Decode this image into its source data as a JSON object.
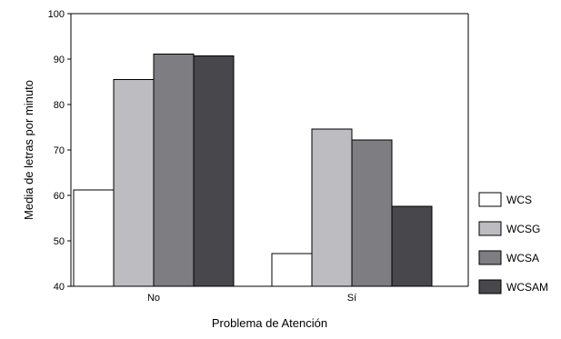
{
  "chart_data": {
    "type": "bar",
    "title": "",
    "xlabel": "Problema de Atención",
    "ylabel": "Media de letras por minuto",
    "ylim": [
      40,
      100
    ],
    "yticks": [
      40,
      50,
      60,
      70,
      80,
      90,
      100
    ],
    "grid": false,
    "legend_position": "right",
    "categories": [
      "No",
      "Sí"
    ],
    "series": [
      {
        "name": "WCS",
        "color": "#ffffff",
        "values": [
          61.2,
          47.2
        ]
      },
      {
        "name": "WCSG",
        "color": "#bdbdc1",
        "values": [
          85.5,
          74.6
        ]
      },
      {
        "name": "WCSA",
        "color": "#7e7e82",
        "values": [
          91.1,
          72.2
        ]
      },
      {
        "name": "WCSAM",
        "color": "#48484c",
        "values": [
          90.7,
          57.6
        ]
      }
    ]
  }
}
